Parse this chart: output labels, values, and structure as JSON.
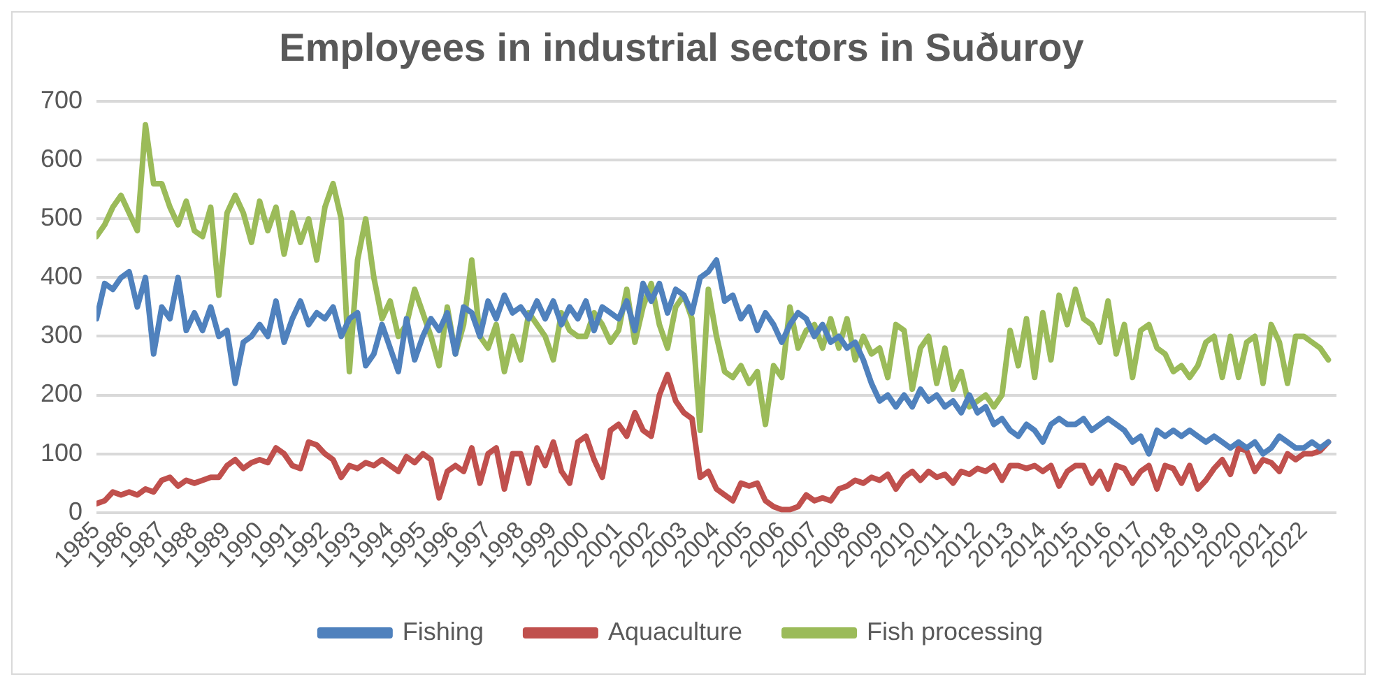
{
  "chart_data": {
    "type": "line",
    "title": "Employees in industrial sectors in Suðuroy",
    "x": [
      1985,
      1985.25,
      1985.5,
      1985.75,
      1986,
      1986.25,
      1986.5,
      1986.75,
      1987,
      1987.25,
      1987.5,
      1987.75,
      1988,
      1988.25,
      1988.5,
      1988.75,
      1989,
      1989.25,
      1989.5,
      1989.75,
      1990,
      1990.25,
      1990.5,
      1990.75,
      1991,
      1991.25,
      1991.5,
      1991.75,
      1992,
      1992.25,
      1992.5,
      1992.75,
      1993,
      1993.25,
      1993.5,
      1993.75,
      1994,
      1994.25,
      1994.5,
      1994.75,
      1995,
      1995.25,
      1995.5,
      1995.75,
      1996,
      1996.25,
      1996.5,
      1996.75,
      1997,
      1997.25,
      1997.5,
      1997.75,
      1998,
      1998.25,
      1998.5,
      1998.75,
      1999,
      1999.25,
      1999.5,
      1999.75,
      2000,
      2000.25,
      2000.5,
      2000.75,
      2001,
      2001.25,
      2001.5,
      2001.75,
      2002,
      2002.25,
      2002.5,
      2002.75,
      2003,
      2003.25,
      2003.5,
      2003.75,
      2004,
      2004.25,
      2004.5,
      2004.75,
      2005,
      2005.25,
      2005.5,
      2005.75,
      2006,
      2006.25,
      2006.5,
      2006.75,
      2007,
      2007.25,
      2007.5,
      2007.75,
      2008,
      2008.25,
      2008.5,
      2008.75,
      2009,
      2009.25,
      2009.5,
      2009.75,
      2010,
      2010.25,
      2010.5,
      2010.75,
      2011,
      2011.25,
      2011.5,
      2011.75,
      2012,
      2012.25,
      2012.5,
      2012.75,
      2013,
      2013.25,
      2013.5,
      2013.75,
      2014,
      2014.25,
      2014.5,
      2014.75,
      2015,
      2015.25,
      2015.5,
      2015.75,
      2016,
      2016.25,
      2016.5,
      2016.75,
      2017,
      2017.25,
      2017.5,
      2017.75,
      2018,
      2018.25,
      2018.5,
      2018.75,
      2019,
      2019.25,
      2019.5,
      2019.75,
      2020,
      2020.25,
      2020.5,
      2020.75,
      2021,
      2021.25,
      2021.5,
      2021.75,
      2022,
      2022.25,
      2022.5,
      2022.75
    ],
    "series": [
      {
        "name": "Fishing",
        "color": "#4f81bd",
        "values": [
          330,
          390,
          380,
          400,
          410,
          350,
          400,
          270,
          350,
          330,
          400,
          310,
          340,
          310,
          350,
          300,
          310,
          220,
          290,
          300,
          320,
          300,
          360,
          290,
          330,
          360,
          320,
          340,
          330,
          350,
          300,
          330,
          340,
          250,
          270,
          320,
          280,
          240,
          330,
          260,
          300,
          330,
          310,
          340,
          270,
          350,
          340,
          300,
          360,
          330,
          370,
          340,
          350,
          330,
          360,
          330,
          360,
          320,
          350,
          330,
          360,
          310,
          350,
          340,
          330,
          360,
          310,
          390,
          360,
          390,
          340,
          380,
          370,
          340,
          400,
          410,
          430,
          360,
          370,
          330,
          350,
          310,
          340,
          320,
          290,
          320,
          340,
          330,
          300,
          320,
          290,
          300,
          280,
          290,
          260,
          220,
          190,
          200,
          180,
          200,
          180,
          210,
          190,
          200,
          180,
          190,
          170,
          200,
          170,
          180,
          150,
          160,
          140,
          130,
          150,
          140,
          120,
          150,
          160,
          150,
          150,
          160,
          140,
          150,
          160,
          150,
          140,
          120,
          130,
          100,
          140,
          130,
          140,
          130,
          140,
          130,
          120,
          130,
          120,
          110,
          120,
          110,
          120,
          100,
          110,
          130,
          120,
          110,
          110,
          120,
          110,
          120
        ]
      },
      {
        "name": "Aquaculture",
        "color": "#c0504d",
        "values": [
          15,
          20,
          35,
          30,
          35,
          30,
          40,
          35,
          55,
          60,
          45,
          55,
          50,
          55,
          60,
          60,
          80,
          90,
          75,
          85,
          90,
          85,
          110,
          100,
          80,
          75,
          120,
          115,
          100,
          90,
          60,
          80,
          75,
          85,
          80,
          90,
          80,
          70,
          95,
          85,
          100,
          90,
          25,
          70,
          80,
          70,
          110,
          50,
          100,
          110,
          40,
          100,
          100,
          50,
          110,
          80,
          120,
          70,
          50,
          120,
          130,
          90,
          60,
          140,
          150,
          130,
          170,
          140,
          130,
          200,
          235,
          190,
          170,
          160,
          60,
          70,
          40,
          30,
          20,
          50,
          45,
          50,
          20,
          10,
          5,
          5,
          10,
          30,
          20,
          25,
          20,
          40,
          45,
          55,
          50,
          60,
          55,
          65,
          40,
          60,
          70,
          55,
          70,
          60,
          65,
          50,
          70,
          65,
          75,
          70,
          80,
          55,
          80,
          80,
          75,
          80,
          70,
          80,
          45,
          70,
          80,
          80,
          50,
          70,
          40,
          80,
          75,
          50,
          70,
          80,
          40,
          80,
          75,
          50,
          80,
          40,
          55,
          75,
          90,
          65,
          110,
          105,
          70,
          90,
          85,
          70,
          100,
          90,
          100,
          100,
          105,
          120
        ]
      },
      {
        "name": "Fish processing",
        "color": "#9bbb59",
        "values": [
          470,
          490,
          520,
          540,
          510,
          480,
          660,
          560,
          560,
          520,
          490,
          530,
          480,
          470,
          520,
          370,
          510,
          540,
          510,
          460,
          530,
          480,
          520,
          440,
          510,
          460,
          500,
          430,
          520,
          560,
          500,
          240,
          430,
          500,
          400,
          330,
          360,
          300,
          320,
          380,
          340,
          300,
          250,
          350,
          270,
          320,
          430,
          300,
          280,
          320,
          240,
          300,
          260,
          340,
          320,
          300,
          260,
          340,
          310,
          300,
          300,
          340,
          320,
          290,
          310,
          380,
          290,
          350,
          390,
          320,
          280,
          350,
          370,
          330,
          140,
          380,
          300,
          240,
          230,
          250,
          220,
          240,
          150,
          250,
          230,
          350,
          280,
          310,
          320,
          280,
          330,
          280,
          330,
          260,
          300,
          270,
          280,
          230,
          320,
          310,
          210,
          280,
          300,
          220,
          280,
          210,
          240,
          180,
          190,
          200,
          180,
          200,
          310,
          250,
          330,
          230,
          340,
          260,
          370,
          320,
          380,
          330,
          320,
          290,
          360,
          270,
          320,
          230,
          310,
          320,
          280,
          270,
          240,
          250,
          230,
          250,
          290,
          300,
          230,
          300,
          230,
          290,
          300,
          220,
          320,
          290,
          220,
          300,
          300,
          290,
          280,
          260
        ]
      }
    ],
    "xlim": [
      1985,
      2023
    ],
    "xticks": [
      1985,
      1986,
      1987,
      1988,
      1989,
      1990,
      1991,
      1992,
      1993,
      1994,
      1995,
      1996,
      1997,
      1998,
      1999,
      2000,
      2001,
      2002,
      2003,
      2004,
      2005,
      2006,
      2007,
      2008,
      2009,
      2010,
      2011,
      2012,
      2013,
      2014,
      2015,
      2016,
      2017,
      2018,
      2019,
      2020,
      2021,
      2022
    ],
    "ylim": [
      0,
      700
    ],
    "yticks": [
      0,
      100,
      200,
      300,
      400,
      500,
      600,
      700
    ],
    "grid": "y",
    "legend": "bottom",
    "marker": "none",
    "line_style": "solid"
  }
}
